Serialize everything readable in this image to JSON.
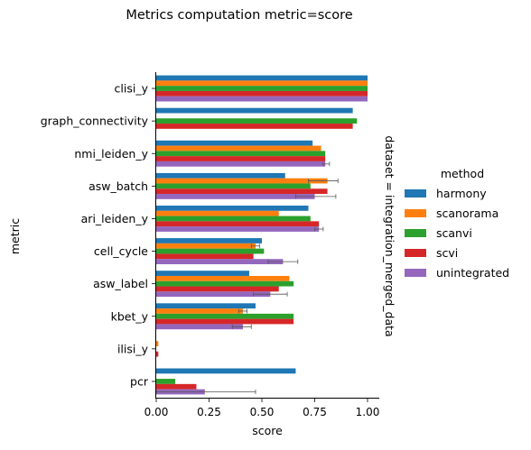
{
  "chart_data": {
    "type": "bar",
    "orientation": "horizontal",
    "title": "Metrics computation metric=score",
    "xlabel": "score",
    "ylabel": "metric",
    "facet_label": "dataset = integration_merged_data",
    "xlim": [
      0.0,
      1.05
    ],
    "xticks": [
      0.0,
      0.25,
      0.5,
      0.75,
      1.0
    ],
    "xtick_labels": [
      "0.00",
      "0.25",
      "0.50",
      "0.75",
      "1.00"
    ],
    "grid": false,
    "legend_title": "method",
    "legend_position": "right",
    "categories": [
      "clisi_y",
      "graph_connectivity",
      "nmi_leiden_y",
      "asw_batch",
      "ari_leiden_y",
      "cell_cycle",
      "asw_label",
      "kbet_y",
      "ilisi_y",
      "pcr"
    ],
    "series": [
      {
        "name": "harmony",
        "color": "#1f77b4",
        "values": [
          1.0,
          0.93,
          0.74,
          0.61,
          0.72,
          0.5,
          0.44,
          0.47,
          0.0,
          0.66
        ],
        "errors": [
          null,
          null,
          null,
          null,
          null,
          null,
          null,
          null,
          null,
          null
        ]
      },
      {
        "name": "scanorama",
        "color": "#ff7f0e",
        "values": [
          1.0,
          null,
          0.78,
          0.81,
          0.58,
          0.47,
          0.63,
          0.41,
          0.01,
          0.0
        ],
        "errors": [
          null,
          null,
          null,
          [
            0.72,
            0.86
          ],
          null,
          [
            0.45,
            0.49
          ],
          null,
          [
            0.39,
            0.43
          ],
          null,
          null
        ]
      },
      {
        "name": "scanvi",
        "color": "#2ca02c",
        "values": [
          1.0,
          0.95,
          0.8,
          0.73,
          0.73,
          0.51,
          0.65,
          0.65,
          0.0,
          0.09
        ],
        "errors": [
          null,
          null,
          null,
          null,
          null,
          null,
          null,
          null,
          null,
          null
        ]
      },
      {
        "name": "scvi",
        "color": "#d62728",
        "values": [
          1.0,
          0.93,
          0.8,
          0.81,
          0.77,
          0.46,
          0.58,
          0.65,
          0.01,
          0.19
        ],
        "errors": [
          null,
          null,
          null,
          null,
          null,
          null,
          null,
          null,
          null,
          null
        ]
      },
      {
        "name": "unintegrated",
        "color": "#9467bd",
        "values": [
          1.0,
          null,
          0.8,
          0.75,
          0.77,
          0.6,
          0.54,
          0.41,
          0.0,
          0.23
        ],
        "errors": [
          null,
          null,
          [
            0.79,
            0.82
          ],
          [
            0.66,
            0.85
          ],
          [
            0.75,
            0.79
          ],
          [
            0.53,
            0.67
          ],
          [
            0.46,
            0.62
          ],
          [
            0.36,
            0.45
          ],
          null,
          [
            0.0,
            0.47
          ]
        ]
      }
    ]
  }
}
